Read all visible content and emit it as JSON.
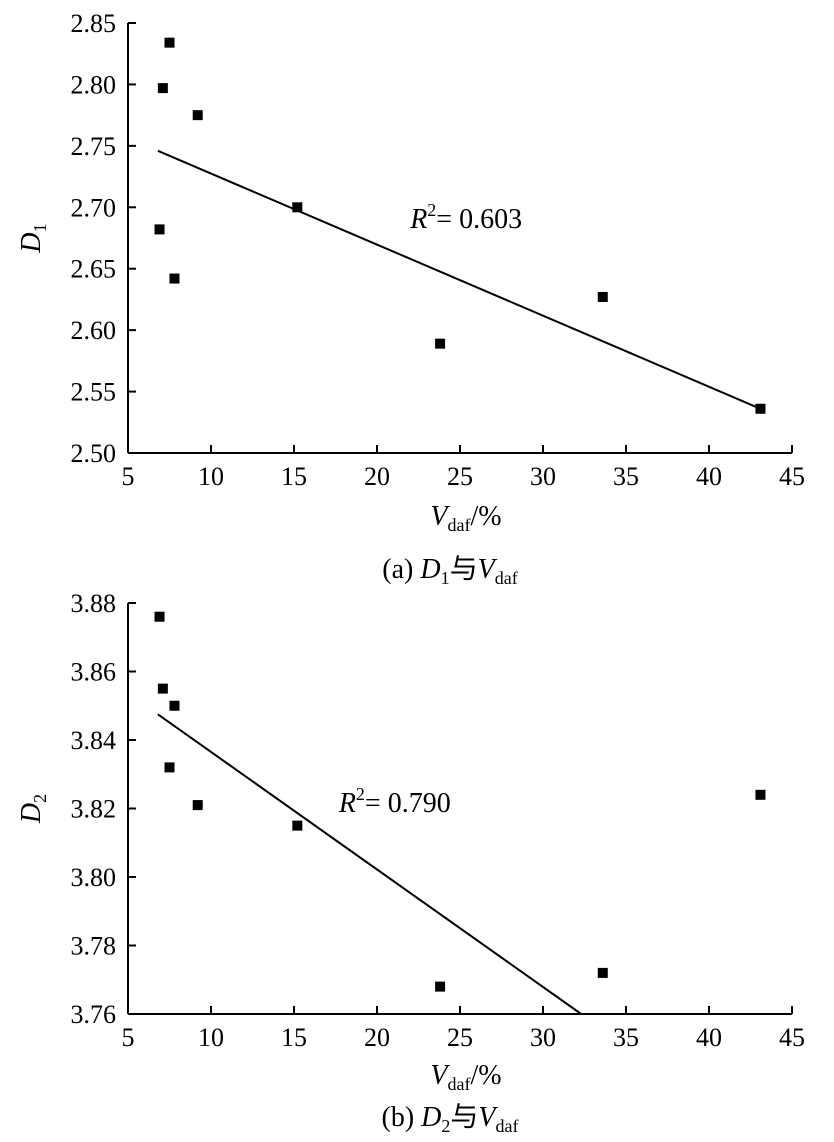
{
  "chart_data": [
    {
      "type": "scatter",
      "caption": {
        "prefix": "(a) ",
        "var": "D",
        "var_sub": "1",
        "conj": "与",
        "x_var": "V",
        "x_var_sub": "daf"
      },
      "xlabel": {
        "var": "V",
        "sub": "daf",
        "unit": "/%"
      },
      "ylabel": {
        "var": "D",
        "sub": "1"
      },
      "xlim": [
        5,
        45
      ],
      "ylim": [
        2.5,
        2.85
      ],
      "xticks": [
        "5",
        "10",
        "15",
        "20",
        "25",
        "30",
        "35",
        "40",
        "45"
      ],
      "yticks": [
        "2.50",
        "2.55",
        "2.60",
        "2.65",
        "2.70",
        "2.75",
        "2.80",
        "2.85"
      ],
      "points": [
        {
          "x": 7.5,
          "y": 2.834
        },
        {
          "x": 7.1,
          "y": 2.797
        },
        {
          "x": 9.2,
          "y": 2.775
        },
        {
          "x": 15.2,
          "y": 2.7
        },
        {
          "x": 6.9,
          "y": 2.682
        },
        {
          "x": 7.8,
          "y": 2.642
        },
        {
          "x": 33.6,
          "y": 2.627
        },
        {
          "x": 23.8,
          "y": 2.589
        },
        {
          "x": 43.1,
          "y": 2.536
        }
      ],
      "fit_line": [
        {
          "x": 6.8,
          "y": 2.746
        },
        {
          "x": 43.1,
          "y": 2.536
        }
      ],
      "annotation": {
        "var": "R",
        "sup": "2",
        "text": "= 0.603",
        "x": 22,
        "y": 2.683
      },
      "grid": false,
      "legend": "none"
    },
    {
      "type": "scatter",
      "caption": {
        "prefix": "(b) ",
        "var": "D",
        "var_sub": "2",
        "conj": "与",
        "x_var": "V",
        "x_var_sub": "daf"
      },
      "xlabel": {
        "var": "V",
        "sub": "daf",
        "unit": "/%"
      },
      "ylabel": {
        "var": "D",
        "sub": "2"
      },
      "xlim": [
        5,
        45
      ],
      "ylim": [
        3.76,
        3.88
      ],
      "xticks": [
        "5",
        "10",
        "15",
        "20",
        "25",
        "30",
        "35",
        "40",
        "45"
      ],
      "yticks": [
        "3.76",
        "3.78",
        "3.80",
        "3.82",
        "3.84",
        "3.86",
        "3.88"
      ],
      "points": [
        {
          "x": 6.9,
          "y": 3.876
        },
        {
          "x": 7.1,
          "y": 3.855
        },
        {
          "x": 7.8,
          "y": 3.85
        },
        {
          "x": 7.5,
          "y": 3.832
        },
        {
          "x": 9.2,
          "y": 3.821
        },
        {
          "x": 15.2,
          "y": 3.815
        },
        {
          "x": 43.1,
          "y": 3.824
        },
        {
          "x": 33.6,
          "y": 3.772
        },
        {
          "x": 23.8,
          "y": 3.768
        }
      ],
      "fit_line": [
        {
          "x": 6.8,
          "y": 3.8475
        },
        {
          "x": 32.3,
          "y": 3.76
        }
      ],
      "annotation": {
        "var": "R",
        "sup": "2",
        "text": "= 0.790",
        "x": 17.7,
        "y": 3.819
      },
      "grid": false,
      "legend": "none"
    }
  ]
}
